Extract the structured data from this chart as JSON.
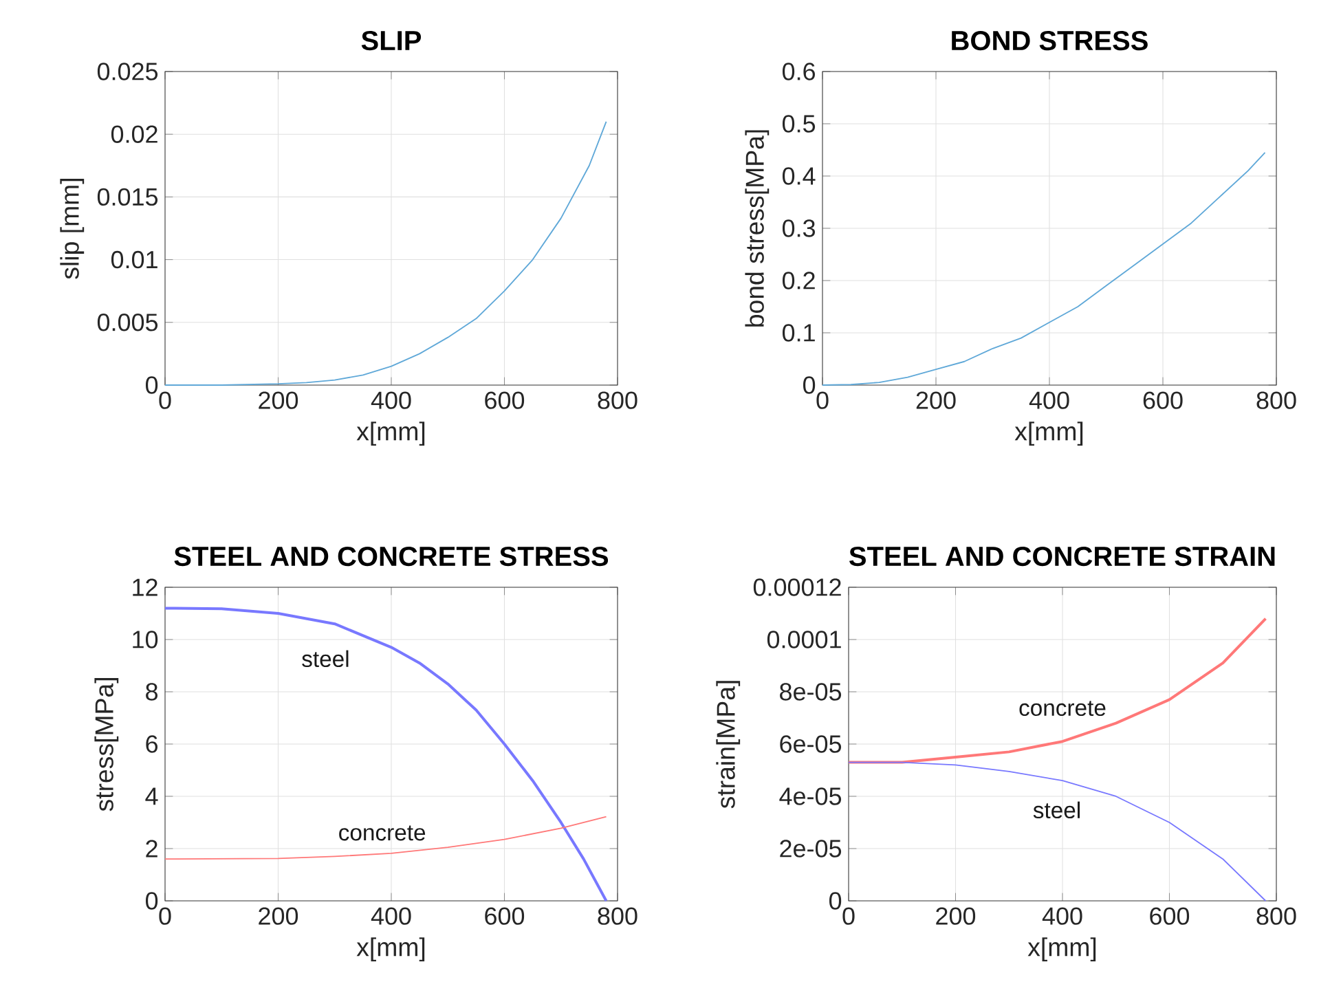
{
  "chart_data": [
    {
      "type": "line",
      "title": "SLIP",
      "xlabel": "x[mm]",
      "ylabel": "slip [mm]",
      "xlim": [
        0,
        800
      ],
      "xticks": [
        0,
        200,
        400,
        600,
        800
      ],
      "ylim": [
        0,
        0.025
      ],
      "yticks": [
        0,
        0.005,
        0.01,
        0.015,
        0.02,
        0.025
      ],
      "grid": true,
      "series": [
        {
          "color": "#5fa8d8",
          "x": [
            0,
            100,
            200,
            250,
            300,
            350,
            400,
            450,
            500,
            550,
            600,
            650,
            700,
            750,
            780
          ],
          "values": [
            0,
            0,
            0.0001,
            0.0002,
            0.0004,
            0.0008,
            0.0015,
            0.0025,
            0.0038,
            0.0053,
            0.0075,
            0.01,
            0.0133,
            0.0175,
            0.021
          ]
        }
      ]
    },
    {
      "type": "line",
      "title": "BOND STRESS",
      "xlabel": "x[mm]",
      "ylabel": "bond stress[MPa]",
      "xlim": [
        0,
        800
      ],
      "xticks": [
        0,
        200,
        400,
        600,
        800
      ],
      "ylim": [
        0,
        0.6
      ],
      "yticks": [
        0,
        0.1,
        0.2,
        0.3,
        0.4,
        0.5,
        0.6
      ],
      "grid": true,
      "series": [
        {
          "color": "#5fa8d8",
          "x": [
            0,
            50,
            100,
            150,
            200,
            250,
            300,
            350,
            400,
            450,
            500,
            550,
            600,
            650,
            700,
            750,
            780
          ],
          "values": [
            0,
            0.001,
            0.005,
            0.015,
            0.03,
            0.045,
            0.07,
            0.09,
            0.12,
            0.15,
            0.19,
            0.23,
            0.27,
            0.31,
            0.36,
            0.41,
            0.445
          ]
        }
      ]
    },
    {
      "type": "line",
      "title": "STEEL AND CONCRETE STRESS",
      "xlabel": "x[mm]",
      "ylabel": "stress[MPa]",
      "xlim": [
        0,
        800
      ],
      "xticks": [
        0,
        200,
        400,
        600,
        800
      ],
      "ylim": [
        0,
        12
      ],
      "yticks": [
        0,
        2,
        4,
        6,
        8,
        10,
        12
      ],
      "grid": true,
      "series": [
        {
          "name": "steel",
          "color": "#7878ff",
          "x": [
            0,
            100,
            200,
            300,
            400,
            450,
            500,
            550,
            600,
            650,
            700,
            740,
            780
          ],
          "values": [
            11.2,
            11.18,
            11.0,
            10.6,
            9.7,
            9.1,
            8.3,
            7.3,
            6.0,
            4.6,
            3.0,
            1.6,
            0
          ]
        },
        {
          "name": "concrete",
          "color": "#ff7878",
          "x": [
            0,
            200,
            300,
            400,
            500,
            600,
            700,
            780
          ],
          "values": [
            1.6,
            1.62,
            1.7,
            1.82,
            2.05,
            2.35,
            2.78,
            3.22
          ]
        }
      ]
    },
    {
      "type": "line",
      "title": "STEEL AND CONCRETE STRAIN",
      "xlabel": "x[mm]",
      "ylabel": "strain[MPa]",
      "xlim": [
        0,
        800
      ],
      "xticks": [
        0,
        200,
        400,
        600,
        800
      ],
      "ylim": [
        0,
        0.00012
      ],
      "yticks": [
        0,
        {
          "value": 2e-05,
          "label": "2e-05"
        },
        {
          "value": 4e-05,
          "label": "4e-05"
        },
        {
          "value": 6e-05,
          "label": "6e-05"
        },
        {
          "value": 8e-05,
          "label": "8e-05"
        },
        0.0001,
        0.00012
      ],
      "grid": true,
      "series": [
        {
          "name": "concrete",
          "color": "#ff7878",
          "x": [
            0,
            100,
            200,
            300,
            400,
            500,
            600,
            700,
            780
          ],
          "values": [
            5.3e-05,
            5.3e-05,
            5.5e-05,
            5.7e-05,
            6.1e-05,
            6.8e-05,
            7.7e-05,
            9.1e-05,
            0.000108
          ]
        },
        {
          "name": "steel",
          "color": "#7878ff",
          "x": [
            0,
            100,
            200,
            300,
            400,
            500,
            600,
            700,
            780
          ],
          "values": [
            5.3e-05,
            5.3e-05,
            5.2e-05,
            4.95e-05,
            4.6e-05,
            4e-05,
            3e-05,
            1.6e-05,
            0
          ]
        }
      ]
    }
  ]
}
